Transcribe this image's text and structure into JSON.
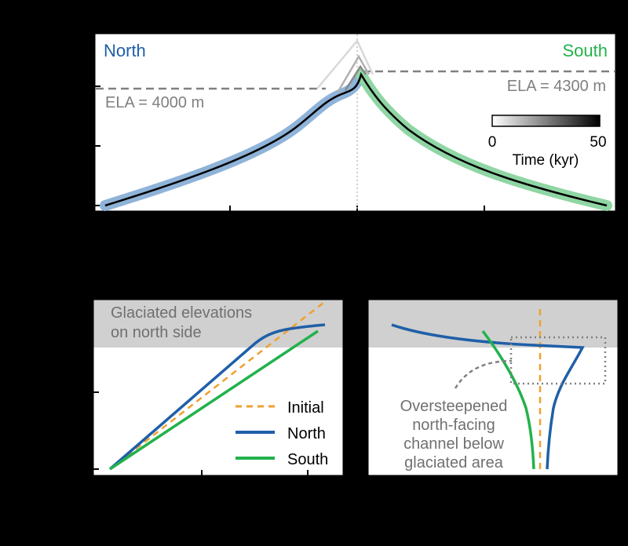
{
  "colors": {
    "north": "#1f5fa8",
    "north_light": "#8fb3d9",
    "south": "#22b24c",
    "south_light": "#8fd6a4",
    "initial": "#f0a030",
    "ela_line": "#808080",
    "shade": "#d0d0d0",
    "panel_bg": "#ffffff",
    "text_gray": "#808080",
    "label_gray": "#707070"
  },
  "chart_data": [
    {
      "type": "line",
      "panel": "top",
      "labels": {
        "north": "North",
        "south": "South",
        "ela_north": "ELA = 4000 m",
        "ela_south": "ELA = 4300 m"
      },
      "colorbar": {
        "min_label": "0",
        "max_label": "50",
        "title": "Time (kyr)"
      },
      "series": [
        {
          "name": "North",
          "x": [
            0.0,
            0.1,
            0.2,
            0.3,
            0.4,
            0.45,
            0.48,
            0.5
          ],
          "y": [
            0.0,
            0.12,
            0.27,
            0.45,
            0.65,
            0.78,
            0.84,
            0.88
          ]
        },
        {
          "name": "South",
          "x": [
            0.5,
            0.6,
            0.7,
            0.8,
            0.9,
            1.0
          ],
          "y": [
            0.88,
            0.55,
            0.36,
            0.21,
            0.1,
            0.0
          ]
        }
      ],
      "initial_peak_y": 1.0,
      "ela_north_y": 0.78,
      "ela_south_y": 0.88
    },
    {
      "type": "line",
      "panel": "bottom-left",
      "shade_label": [
        "Glaciated elevations",
        "on north side"
      ],
      "legend": [
        "Initial",
        "North",
        "South"
      ],
      "series": [
        {
          "name": "Initial",
          "x": [
            0,
            1
          ],
          "y": [
            0,
            1
          ]
        },
        {
          "name": "North",
          "x": [
            0,
            0.3,
            0.6,
            0.68,
            0.8,
            1.0
          ],
          "y": [
            0,
            0.33,
            0.68,
            0.76,
            0.82,
            0.85
          ]
        },
        {
          "name": "South",
          "x": [
            0,
            0.3,
            0.6,
            0.9,
            0.96
          ],
          "y": [
            0,
            0.28,
            0.53,
            0.75,
            0.8
          ]
        }
      ]
    },
    {
      "type": "line",
      "panel": "bottom-right",
      "annotation": [
        "Oversteepened",
        "north-facing",
        "channel below",
        "glaciated area"
      ]
    }
  ]
}
